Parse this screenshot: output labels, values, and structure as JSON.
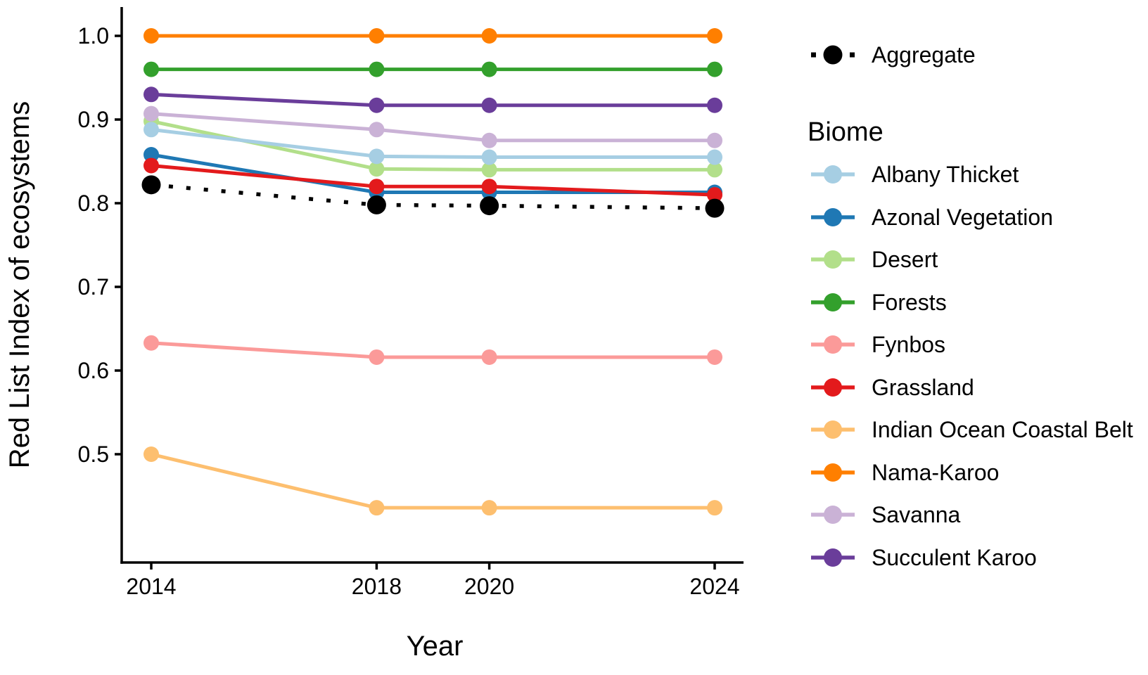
{
  "chart_data": {
    "type": "line",
    "title": "",
    "x_label": "Year",
    "y_label": "Red List Index of ecosystems",
    "x": [
      2014,
      2018,
      2020,
      2024
    ],
    "x_tick_labels": [
      "2014",
      "2018",
      "2020",
      "2024"
    ],
    "y_ticks": [
      0.5,
      0.6,
      0.7,
      0.8,
      0.9,
      1.0
    ],
    "y_tick_labels": [
      "0.5",
      "0.6",
      "0.7",
      "0.8",
      "0.9",
      "1.0"
    ],
    "ylim": [
      0.375,
      1.035
    ],
    "grid": "off",
    "legend_position": "right",
    "aggregate": {
      "name": "Aggregate",
      "color": "#000000",
      "line_style": "dotted",
      "values": [
        0.822,
        0.798,
        0.797,
        0.794
      ]
    },
    "biome_legend_title": "Biome",
    "series": [
      {
        "name": "Albany Thicket",
        "color": "#A6CEE3",
        "line_style": "solid",
        "values": [
          0.888,
          0.856,
          0.855,
          0.855
        ]
      },
      {
        "name": "Azonal Vegetation",
        "color": "#1F78B4",
        "line_style": "solid",
        "values": [
          0.858,
          0.813,
          0.813,
          0.813
        ]
      },
      {
        "name": "Desert",
        "color": "#B2DF8A",
        "line_style": "solid",
        "values": [
          0.898,
          0.841,
          0.84,
          0.84
        ]
      },
      {
        "name": "Forests",
        "color": "#33A02C",
        "line_style": "solid",
        "values": [
          0.96,
          0.96,
          0.96,
          0.96
        ]
      },
      {
        "name": "Fynbos",
        "color": "#FB9A99",
        "line_style": "solid",
        "values": [
          0.633,
          0.616,
          0.616,
          0.616
        ]
      },
      {
        "name": "Grassland",
        "color": "#E31A1C",
        "line_style": "solid",
        "values": [
          0.845,
          0.82,
          0.82,
          0.81
        ]
      },
      {
        "name": "Indian Ocean Coastal Belt",
        "color": "#FDBF6F",
        "line_style": "solid",
        "values": [
          0.5,
          0.436,
          0.436,
          0.436
        ]
      },
      {
        "name": "Nama-Karoo",
        "color": "#FF7F00",
        "line_style": "solid",
        "values": [
          1.0,
          1.0,
          1.0,
          1.0
        ]
      },
      {
        "name": "Savanna",
        "color": "#CAB2D6",
        "line_style": "solid",
        "values": [
          0.907,
          0.888,
          0.875,
          0.875
        ]
      },
      {
        "name": "Succulent Karoo",
        "color": "#6A3D9A",
        "line_style": "solid",
        "values": [
          0.93,
          0.917,
          0.917,
          0.917
        ]
      }
    ]
  }
}
